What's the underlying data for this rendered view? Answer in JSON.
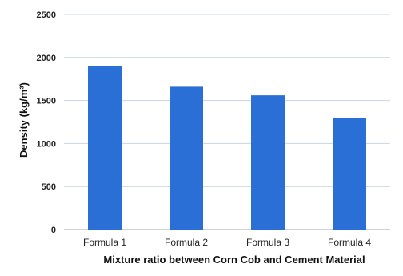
{
  "chart_data": {
    "type": "bar",
    "categories": [
      "Formula 1",
      "Formula 2",
      "Formula 3",
      "Formula 4"
    ],
    "values": [
      1900,
      1660,
      1560,
      1300
    ],
    "xlabel": "Mixture ratio between Corn Cob and Cement Material",
    "ylabel": "Density (kg/m³)",
    "ylim": [
      0,
      2500
    ],
    "yticks": [
      "0",
      "500",
      "1000",
      "1500",
      "2000",
      "2500"
    ],
    "grid": true,
    "colors": {
      "bar": "#2a6fd6",
      "grid": "#c9d4e3",
      "axis": "#9aa5b3"
    }
  }
}
